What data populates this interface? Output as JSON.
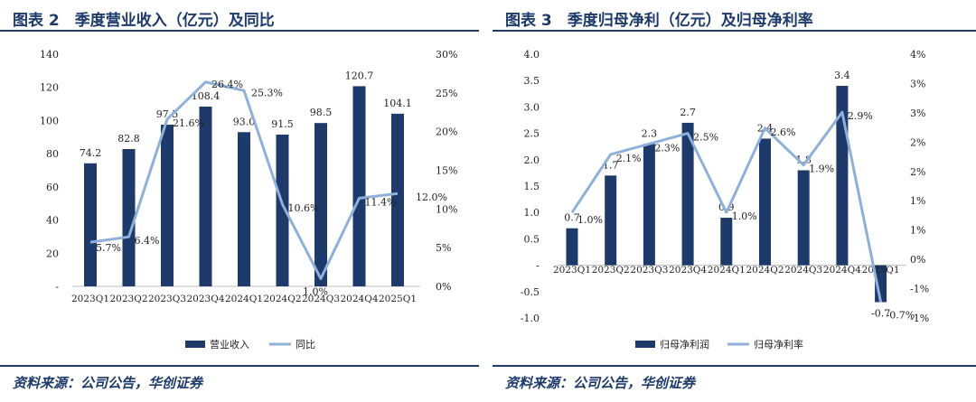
{
  "charts": [
    {
      "title": "图表 2　季度营业收入（亿元）及同比",
      "source": "资料来源：公司公告，华创证券"
    },
    {
      "title": "图表 3　季度归母净利（亿元）及归母净利率",
      "source": "资料来源：公司公告，华创证券"
    }
  ],
  "colors": {
    "bar": "#1d3a6b",
    "line": "#8fb0d8",
    "title": "#1d3a6b"
  },
  "chart_data": [
    {
      "type": "bar+line",
      "title": "图表 2　季度营业收入（亿元）及同比",
      "categories": [
        "2023Q1",
        "2023Q2",
        "2023Q3",
        "2023Q4",
        "2024Q1",
        "2024Q2",
        "2024Q3",
        "2024Q4",
        "2025Q1"
      ],
      "series": [
        {
          "name": "营业收入",
          "type": "bar",
          "axis": "left",
          "values": [
            74.2,
            82.8,
            97.5,
            108.4,
            93.0,
            91.5,
            98.5,
            120.7,
            104.1
          ],
          "labels": [
            "74.2",
            "82.8",
            "97.5",
            "108.4",
            "93.0",
            "91.5",
            "98.5",
            "120.7",
            "104.1"
          ]
        },
        {
          "name": "同比",
          "type": "line",
          "axis": "right",
          "values": [
            5.7,
            6.4,
            21.6,
            26.4,
            25.3,
            10.6,
            1.0,
            11.4,
            12.0
          ],
          "labels": [
            "5.7%",
            "6.4%",
            "21.6%",
            "26.4%",
            "25.3%",
            "10.6%",
            "1.0%",
            "11.4%",
            "12.0%"
          ]
        }
      ],
      "left_axis": {
        "ticks": [
          "140",
          "120",
          "100",
          "80",
          "60",
          "40",
          "20",
          "-"
        ],
        "ylim": [
          0,
          140
        ]
      },
      "right_axis": {
        "ticks": [
          "30%",
          "25%",
          "20%",
          "15%",
          "10%",
          "5%",
          "0%"
        ],
        "ylim": [
          0,
          30
        ]
      },
      "legend": [
        "营业收入",
        "同比"
      ]
    },
    {
      "type": "bar+line",
      "title": "图表 3　季度归母净利（亿元）及归母净利率",
      "categories": [
        "2023Q1",
        "2023Q2",
        "2023Q3",
        "2023Q4",
        "2024Q1",
        "2024Q2",
        "2024Q3",
        "2024Q4",
        "2025Q1"
      ],
      "series": [
        {
          "name": "归母净利润",
          "type": "bar",
          "axis": "left",
          "values": [
            0.7,
            1.7,
            2.3,
            2.7,
            0.9,
            2.4,
            1.8,
            3.4,
            -0.7
          ],
          "labels": [
            "0.7",
            "1.7",
            "2.3",
            "2.7",
            "0.9",
            "2.4",
            "1.8",
            "3.4",
            "-0.7"
          ]
        },
        {
          "name": "归母净利率",
          "type": "line",
          "axis": "right",
          "values": [
            1.0,
            2.1,
            2.3,
            2.5,
            1.0,
            2.6,
            1.9,
            2.9,
            -0.7
          ],
          "labels": [
            "1.0%",
            "2.1%",
            "2.3%",
            "2.5%",
            "1.0%",
            "2.6%",
            "1.9%",
            "2.9%",
            "-0.7%"
          ]
        }
      ],
      "left_axis": {
        "ticks": [
          "4.0",
          "3.5",
          "3.0",
          "2.5",
          "2.0",
          "1.5",
          "1.0",
          "0.5",
          "-",
          "-0.5",
          "-1.0"
        ],
        "ylim": [
          -1.0,
          4.0
        ]
      },
      "right_axis": {
        "ticks": [
          "4%",
          "3%",
          "3%",
          "2%",
          "2%",
          "1%",
          "1%",
          "0%",
          "-1%",
          "-1%"
        ],
        "ylim": [
          -1.0,
          4.0
        ]
      },
      "legend": [
        "归母净利润",
        "归母净利率"
      ]
    }
  ]
}
